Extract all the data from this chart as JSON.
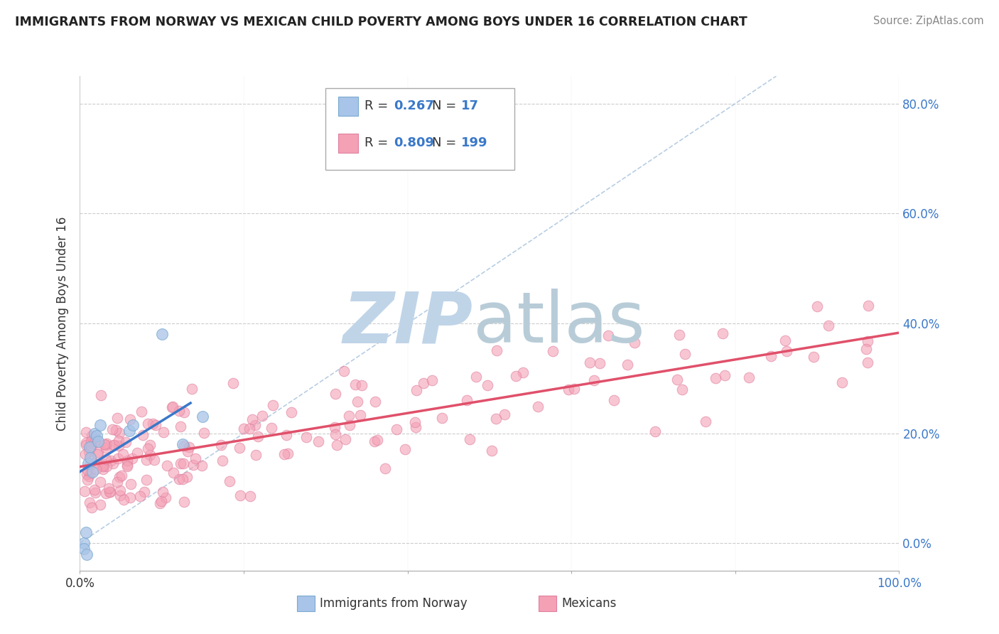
{
  "title": "IMMIGRANTS FROM NORWAY VS MEXICAN CHILD POVERTY AMONG BOYS UNDER 16 CORRELATION CHART",
  "source": "Source: ZipAtlas.com",
  "ylabel": "Child Poverty Among Boys Under 16",
  "norway_R": 0.267,
  "norway_N": 17,
  "mexican_R": 0.809,
  "mexican_N": 199,
  "norway_color": "#a8c4e8",
  "norwegian_edge_color": "#7aaad0",
  "mexican_color": "#f4a0b5",
  "mexican_edge_color": "#e080a0",
  "norway_line_color": "#3a78c9",
  "mexican_line_color": "#e0506a",
  "diag_line_color": "#b0c8e0",
  "watermark_zip_color": "#c0d4e8",
  "watermark_atlas_color": "#b8ccd8",
  "legend_border_color": "#b0b0b0",
  "blue_text_color": "#3a78c9",
  "grid_color": "#cccccc",
  "tick_color": "#3a78c9",
  "xlim": [
    0.0,
    1.0
  ],
  "ylim": [
    -0.05,
    0.85
  ],
  "y_ticks": [
    0.0,
    0.2,
    0.4,
    0.6,
    0.8
  ],
  "y_tick_labels": [
    "0.0%",
    "20.0%",
    "40.0%",
    "60.0%",
    "80.0%"
  ],
  "x_ticks": [
    0.0,
    0.2,
    0.4,
    0.6,
    0.8,
    1.0
  ],
  "norway_scatter_x": [
    0.005,
    0.005,
    0.007,
    0.008,
    0.01,
    0.012,
    0.013,
    0.015,
    0.018,
    0.02,
    0.022,
    0.025,
    0.06,
    0.065,
    0.1,
    0.125,
    0.15
  ],
  "norway_scatter_y": [
    0.0,
    -0.01,
    0.02,
    -0.02,
    0.145,
    0.175,
    0.155,
    0.13,
    0.2,
    0.195,
    0.185,
    0.215,
    0.205,
    0.215,
    0.38,
    0.18,
    0.23
  ],
  "mex_seed": 42,
  "norway_line_x0": 0.0,
  "norway_line_x1": 0.135,
  "norway_line_y0": 0.13,
  "norway_line_y1": 0.255
}
